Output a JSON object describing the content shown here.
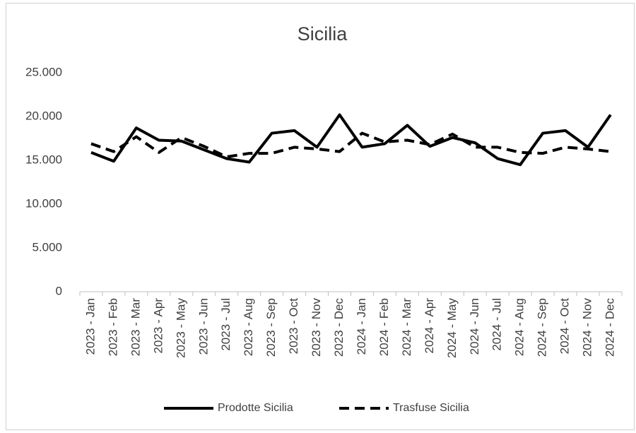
{
  "chart_data": {
    "type": "line",
    "title": "Sicilia",
    "categories": [
      "2023 - Jan",
      "2023 - Feb",
      "2023 - Mar",
      "2023 - Apr",
      "2023 - May",
      "2023 - Jun",
      "2023 - Jul",
      "2023 - Aug",
      "2023 - Sep",
      "2023 - Oct",
      "2023 - Nov",
      "2023 - Dec",
      "2024 - Jan",
      "2024 - Feb",
      "2024 - Mar",
      "2024 - Apr",
      "2024 - May",
      "2024 - Jun",
      "2024 - Jul",
      "2024 - Aug",
      "2024 - Sep",
      "2024 - Oct",
      "2024 - Nov",
      "2024 - Dec"
    ],
    "series": [
      {
        "name": "Prodotte Sicilia",
        "color": "#000000",
        "dash": "solid",
        "values": [
          15900,
          14900,
          18700,
          17300,
          17200,
          16200,
          15200,
          14800,
          18100,
          18400,
          16500,
          20200,
          16500,
          16900,
          19000,
          16600,
          17600,
          17000,
          15200,
          14500,
          18100,
          18400,
          16500,
          20200
        ]
      },
      {
        "name": "Trasfuse  Sicilia",
        "color": "#000000",
        "dash": "dashed",
        "values": [
          16900,
          16000,
          17700,
          15900,
          17600,
          16600,
          15400,
          15800,
          15800,
          16500,
          16300,
          16000,
          18100,
          17100,
          17300,
          16800,
          18000,
          16500,
          16500,
          15900,
          15800,
          16500,
          16300,
          16000
        ]
      }
    ],
    "ylim": [
      0,
      25000
    ],
    "yticks": [
      0,
      {
        "value": 5000,
        "label": "5.000"
      },
      {
        "value": 10000,
        "label": "10.000"
      },
      {
        "value": 15000,
        "label": "15.000"
      },
      {
        "value": 20000,
        "label": "20.000"
      },
      {
        "value": 25000,
        "label": "25.000"
      }
    ],
    "grid": false,
    "legend": "bottom"
  }
}
